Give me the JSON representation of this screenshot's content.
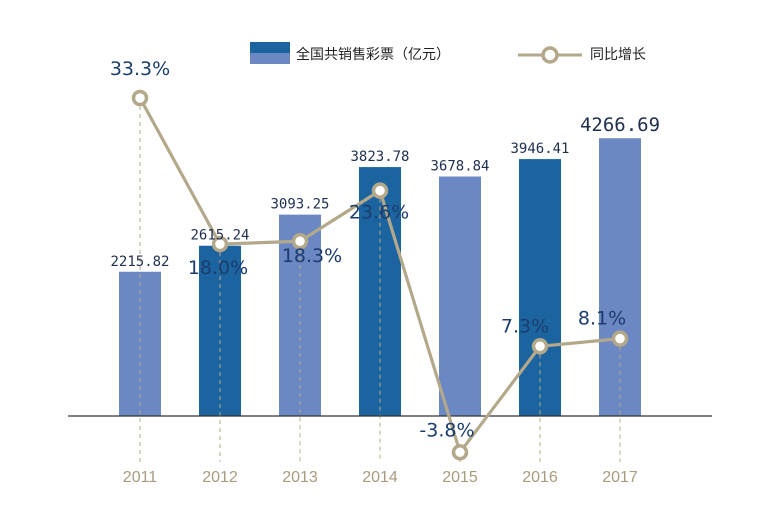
{
  "chart_data": {
    "type": "bar+line",
    "categories": [
      "2011",
      "2012",
      "2013",
      "2014",
      "2015",
      "2016",
      "2017"
    ],
    "bar_series": {
      "name": "全国共销售彩票（亿元）",
      "values": [
        2215.82,
        2615.24,
        3093.25,
        3823.78,
        3678.84,
        3946.41,
        4266.69
      ],
      "labels": [
        "2215.82",
        "2615.24",
        "3093.25",
        "3823.78",
        "3678.84",
        "3946.41",
        "4266.69"
      ],
      "ylim": [
        0,
        4700
      ]
    },
    "line_series": {
      "name": "同比增长",
      "values": [
        33.3,
        18.0,
        18.3,
        23.6,
        -3.8,
        7.3,
        8.1
      ],
      "labels": [
        "33.3%",
        "18.0%",
        "18.3%",
        "23.6%",
        "-3.8%",
        "7.3%",
        "8.1%"
      ],
      "ylim": [
        -7,
        38
      ]
    },
    "legend_position": "top-right"
  },
  "colors": {
    "bar_light": "#6b87c4",
    "bar_dark": "#1c649f",
    "line": "#b3a88a",
    "marker_fill": "#ffffff",
    "axis": "#333333",
    "label": "#1f2f4e",
    "year": "#a89b7e"
  }
}
